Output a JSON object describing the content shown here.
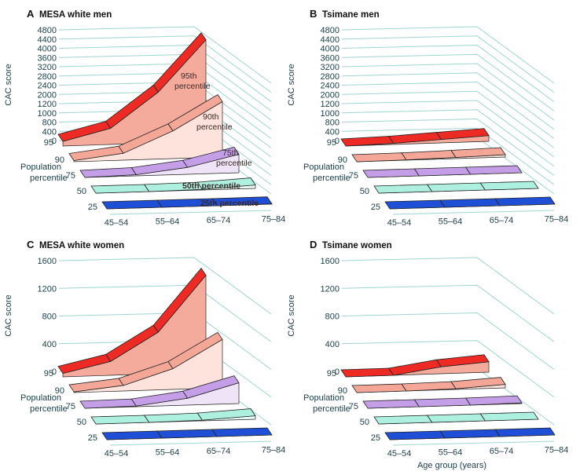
{
  "chart_data": [
    {
      "type": "area",
      "letter": "A",
      "title": "MESA white men",
      "ylabel": "CAC score",
      "zlabel": "Population percentile",
      "xlabel": "",
      "yticks": [
        0,
        400,
        800,
        1000,
        1200,
        2000,
        2400,
        2800,
        3200,
        3600,
        4000,
        4400,
        4800
      ],
      "categories": [
        "45–54",
        "55–64",
        "65–74",
        "75–84"
      ],
      "series": [
        {
          "name": "95th percentile",
          "percentile": "95",
          "values": [
            200,
            700,
            2200,
            4400
          ]
        },
        {
          "name": "90th percentile",
          "percentile": "90",
          "values": [
            50,
            300,
            1000,
            2400
          ]
        },
        {
          "name": "75th percentile",
          "percentile": "75",
          "values": [
            0,
            50,
            300,
            800
          ]
        },
        {
          "name": "50th percentile",
          "percentile": "50",
          "values": [
            0,
            0,
            30,
            150
          ]
        },
        {
          "name": "25th percentile",
          "percentile": "25",
          "values": [
            0,
            0,
            0,
            10
          ]
        }
      ]
    },
    {
      "type": "area",
      "letter": "B",
      "title": "Tsimane men",
      "ylabel": "CAC score",
      "zlabel": "Population percentile",
      "xlabel": "",
      "yticks": [
        0,
        400,
        800,
        1000,
        1200,
        2000,
        2400,
        2800,
        3200,
        3600,
        4000,
        4400,
        4800
      ],
      "categories": [
        "45–54",
        "55–64",
        "65–74",
        "75–84"
      ],
      "series": [
        {
          "percentile": "95",
          "values": [
            0,
            50,
            150,
            250
          ]
        },
        {
          "percentile": "90",
          "values": [
            0,
            10,
            50,
            100
          ]
        },
        {
          "percentile": "75",
          "values": [
            0,
            0,
            0,
            0
          ]
        },
        {
          "percentile": "50",
          "values": [
            0,
            0,
            0,
            0
          ]
        },
        {
          "percentile": "25",
          "values": [
            0,
            0,
            0,
            0
          ]
        }
      ]
    },
    {
      "type": "area",
      "letter": "C",
      "title": "MESA white women",
      "ylabel": "CAC score",
      "zlabel": "Population percentile",
      "xlabel": "",
      "yticks": [
        0,
        400,
        800,
        1200,
        1600
      ],
      "categories": [
        "45–54",
        "55–64",
        "65–74",
        "75–84"
      ],
      "series": [
        {
          "percentile": "95",
          "values": [
            50,
            200,
            600,
            1400
          ]
        },
        {
          "percentile": "90",
          "values": [
            10,
            80,
            300,
            700
          ]
        },
        {
          "percentile": "75",
          "values": [
            0,
            10,
            100,
            300
          ]
        },
        {
          "percentile": "50",
          "values": [
            0,
            0,
            10,
            50
          ]
        },
        {
          "percentile": "25",
          "values": [
            0,
            0,
            0,
            0
          ]
        }
      ]
    },
    {
      "type": "area",
      "letter": "D",
      "title": "Tsimane women",
      "ylabel": "CAC score",
      "zlabel": "Population percentile",
      "xlabel": "Age group (years)",
      "yticks": [
        0,
        400,
        800,
        1200,
        1600
      ],
      "categories": [
        "45–54",
        "55–64",
        "65–74",
        "75–84"
      ],
      "series": [
        {
          "percentile": "95",
          "values": [
            0,
            0,
            100,
            150
          ]
        },
        {
          "percentile": "90",
          "values": [
            0,
            0,
            10,
            50
          ]
        },
        {
          "percentile": "75",
          "values": [
            0,
            0,
            0,
            10
          ]
        },
        {
          "percentile": "50",
          "values": [
            0,
            0,
            0,
            0
          ]
        },
        {
          "percentile": "25",
          "values": [
            0,
            0,
            0,
            0
          ]
        }
      ]
    }
  ],
  "colors": {
    "grid": "#9fd4cf",
    "p95_top": "#ee2a24",
    "p95_fill": "#f5ab9c",
    "p90_top": "#f4a697",
    "p90_fill": "#fde3db",
    "p75_top": "#c59ee8",
    "p75_fill": "#efe3f8",
    "p50_top": "#aef0e0",
    "p50_fill": "#e9fbf5",
    "p25_top": "#1f4fd6",
    "p25_fill": "#d3dbff"
  }
}
